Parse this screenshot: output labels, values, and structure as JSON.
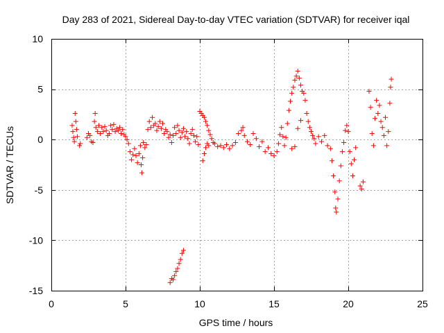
{
  "chart_data": {
    "type": "scatter",
    "title": "Day 283 of 2021, Sidereal Day-to-day VTEC variation (SDTVAR) for receiver iqal",
    "xlabel": "GPS time / hours",
    "ylabel": "SDTVAR / TECUs",
    "xlim": [
      0,
      25
    ],
    "ylim": [
      -15,
      10
    ],
    "xticks": [
      0,
      5,
      10,
      15,
      20,
      25
    ],
    "yticks": [
      -15,
      -10,
      -5,
      0,
      5,
      10
    ],
    "xtick_labels": [
      "0",
      "5",
      "10",
      "15",
      "20",
      "25"
    ],
    "ytick_labels": [
      "-15",
      "-10",
      "-5",
      "0",
      "5",
      "10"
    ],
    "grid": true,
    "marker": "+",
    "color": "#ff0000",
    "series": [
      {
        "name": "SDTVAR",
        "points": [
          [
            1.4,
            1.4
          ],
          [
            1.45,
            0.8
          ],
          [
            1.5,
            0.2
          ],
          [
            1.55,
            -0.2
          ],
          [
            1.6,
            2.6
          ],
          [
            1.65,
            1.8
          ],
          [
            1.7,
            1.0
          ],
          [
            1.75,
            0.3
          ],
          [
            1.9,
            -0.6
          ],
          [
            1.95,
            -0.4
          ],
          [
            2.4,
            0.2
          ],
          [
            2.5,
            0.6
          ],
          [
            2.6,
            0.4
          ],
          [
            2.7,
            -0.2
          ],
          [
            2.8,
            -0.3
          ],
          [
            2.9,
            1.8
          ],
          [
            2.95,
            2.6
          ],
          [
            3.0,
            1.2
          ],
          [
            3.1,
            0.8
          ],
          [
            3.2,
            1.4
          ],
          [
            3.3,
            0.6
          ],
          [
            3.4,
            1.2
          ],
          [
            3.5,
            0.8
          ],
          [
            3.6,
            1.3
          ],
          [
            3.7,
            0.9
          ],
          [
            3.8,
            0.4
          ],
          [
            3.9,
            0.6
          ],
          [
            4.0,
            1.4
          ],
          [
            4.1,
            1.0
          ],
          [
            4.2,
            1.5
          ],
          [
            4.3,
            0.8
          ],
          [
            4.4,
            1.1
          ],
          [
            4.5,
            0.9
          ],
          [
            4.6,
            1.2
          ],
          [
            4.7,
            0.6
          ],
          [
            4.8,
            1.0
          ],
          [
            4.9,
            0.5
          ],
          [
            5.0,
            0.3
          ],
          [
            5.1,
            0.0
          ],
          [
            5.2,
            -0.4
          ],
          [
            5.3,
            -1.2
          ],
          [
            5.4,
            -2.0
          ],
          [
            5.5,
            -1.5
          ],
          [
            5.6,
            -0.9
          ],
          [
            5.7,
            -1.6
          ],
          [
            5.8,
            -2.3
          ],
          [
            5.9,
            -1.4
          ],
          [
            6.0,
            -0.6
          ],
          [
            6.05,
            -2.5
          ],
          [
            6.1,
            -3.3
          ],
          [
            6.15,
            -1.8
          ],
          [
            6.2,
            -0.3
          ],
          [
            6.3,
            -0.8
          ],
          [
            6.4,
            -0.5
          ],
          [
            6.5,
            1.0
          ],
          [
            6.6,
            1.8
          ],
          [
            6.7,
            1.2
          ],
          [
            6.8,
            2.2
          ],
          [
            6.9,
            1.4
          ],
          [
            7.0,
            1.6
          ],
          [
            7.1,
            0.9
          ],
          [
            7.2,
            1.3
          ],
          [
            7.3,
            1.8
          ],
          [
            7.4,
            1.1
          ],
          [
            7.5,
            1.6
          ],
          [
            7.6,
            0.6
          ],
          [
            7.7,
            1.0
          ],
          [
            7.8,
            0.8
          ],
          [
            7.9,
            0.2
          ],
          [
            8.0,
            0.5
          ],
          [
            8.1,
            -0.3
          ],
          [
            8.2,
            0.4
          ],
          [
            8.3,
            1.2
          ],
          [
            8.4,
            0.6
          ],
          [
            8.5,
            1.4
          ],
          [
            8.6,
            0.9
          ],
          [
            8.7,
            0.2
          ],
          [
            8.8,
            0.7
          ],
          [
            8.9,
            1.1
          ],
          [
            9.0,
            0.3
          ],
          [
            9.1,
            0.8
          ],
          [
            9.2,
            0.1
          ],
          [
            9.3,
            -0.4
          ],
          [
            9.4,
            0.6
          ],
          [
            9.5,
            1.0
          ],
          [
            9.6,
            0.4
          ],
          [
            9.7,
            -0.2
          ],
          [
            9.8,
            0.3
          ],
          [
            9.9,
            -0.5
          ],
          [
            8.0,
            -14.2
          ],
          [
            8.1,
            -13.8
          ],
          [
            8.2,
            -13.9
          ],
          [
            8.3,
            -13.5
          ],
          [
            8.4,
            -13.1
          ],
          [
            8.5,
            -12.8
          ],
          [
            8.6,
            -12.3
          ],
          [
            8.7,
            -11.9
          ],
          [
            8.8,
            -11.3
          ],
          [
            8.9,
            -11.0
          ],
          [
            10.0,
            2.8
          ],
          [
            10.1,
            2.6
          ],
          [
            10.2,
            2.4
          ],
          [
            10.3,
            2.2
          ],
          [
            10.4,
            1.8
          ],
          [
            10.5,
            1.4
          ],
          [
            10.6,
            0.9
          ],
          [
            10.7,
            0.5
          ],
          [
            10.8,
            0.1
          ],
          [
            10.9,
            -0.3
          ],
          [
            10.2,
            -2.1
          ],
          [
            10.3,
            -1.4
          ],
          [
            10.4,
            -0.8
          ],
          [
            10.5,
            -0.4
          ],
          [
            10.6,
            -0.6
          ],
          [
            11.0,
            -0.4
          ],
          [
            11.2,
            -0.7
          ],
          [
            11.4,
            -0.6
          ],
          [
            11.6,
            -0.8
          ],
          [
            11.8,
            -0.5
          ],
          [
            12.0,
            -0.9
          ],
          [
            12.2,
            -0.6
          ],
          [
            12.4,
            -0.3
          ],
          [
            12.6,
            0.6
          ],
          [
            12.8,
            0.9
          ],
          [
            12.9,
            1.2
          ],
          [
            13.0,
            0.4
          ],
          [
            13.2,
            -0.2
          ],
          [
            13.4,
            -0.5
          ],
          [
            13.6,
            0.6
          ],
          [
            13.8,
            0.1
          ],
          [
            14.0,
            -0.7
          ],
          [
            14.2,
            -0.2
          ],
          [
            14.4,
            -1.2
          ],
          [
            14.6,
            -0.8
          ],
          [
            14.8,
            -1.4
          ],
          [
            15.0,
            -1.6
          ],
          [
            15.2,
            -1.2
          ],
          [
            15.3,
            -0.4
          ],
          [
            15.4,
            0.5
          ],
          [
            15.5,
            1.2
          ],
          [
            15.6,
            0.3
          ],
          [
            15.7,
            -0.6
          ],
          [
            15.8,
            0.2
          ],
          [
            15.9,
            1.6
          ],
          [
            16.0,
            2.9
          ],
          [
            16.1,
            3.8
          ],
          [
            16.2,
            4.6
          ],
          [
            16.3,
            5.2
          ],
          [
            16.4,
            5.9
          ],
          [
            16.5,
            6.3
          ],
          [
            16.6,
            6.8
          ],
          [
            16.7,
            6.1
          ],
          [
            16.8,
            5.4
          ],
          [
            16.9,
            4.8
          ],
          [
            17.0,
            4.6
          ],
          [
            17.1,
            3.9
          ],
          [
            17.2,
            2.6
          ],
          [
            17.3,
            1.8
          ],
          [
            17.4,
            1.2
          ],
          [
            17.5,
            0.8
          ],
          [
            17.6,
            0.4
          ],
          [
            17.7,
            0.1
          ],
          [
            17.8,
            -0.4
          ],
          [
            16.2,
            -0.9
          ],
          [
            16.4,
            -0.7
          ],
          [
            16.6,
            1.1
          ],
          [
            16.8,
            1.9
          ],
          [
            18.0,
            0.3
          ],
          [
            18.2,
            -0.2
          ],
          [
            18.4,
            0.4
          ],
          [
            18.6,
            -0.6
          ],
          [
            18.8,
            -0.9
          ],
          [
            18.9,
            -2.1
          ],
          [
            19.0,
            -3.6
          ],
          [
            19.1,
            -5.2
          ],
          [
            19.15,
            -6.8
          ],
          [
            19.2,
            -7.2
          ],
          [
            19.3,
            -5.9
          ],
          [
            19.4,
            -4.1
          ],
          [
            19.5,
            -2.6
          ],
          [
            19.6,
            -1.2
          ],
          [
            19.7,
            -0.3
          ],
          [
            19.8,
            0.9
          ],
          [
            19.9,
            1.4
          ],
          [
            20.0,
            0.8
          ],
          [
            20.1,
            -1.2
          ],
          [
            20.2,
            -2.4
          ],
          [
            20.3,
            -3.6
          ],
          [
            20.4,
            -2.0
          ],
          [
            20.5,
            -0.8
          ],
          [
            20.8,
            -4.6
          ],
          [
            20.9,
            -4.9
          ],
          [
            21.0,
            -4.2
          ],
          [
            21.4,
            4.8
          ],
          [
            21.5,
            3.2
          ],
          [
            21.6,
            0.6
          ],
          [
            21.7,
            -0.6
          ],
          [
            21.8,
            2.1
          ],
          [
            21.9,
            3.9
          ],
          [
            22.0,
            2.6
          ],
          [
            22.1,
            3.4
          ],
          [
            22.2,
            1.8
          ],
          [
            22.3,
            1.2
          ],
          [
            22.4,
            0.4
          ],
          [
            22.5,
            2.2
          ],
          [
            22.6,
            -0.6
          ],
          [
            22.7,
            0.8
          ],
          [
            22.8,
            3.6
          ],
          [
            22.85,
            5.2
          ],
          [
            22.9,
            6.0
          ]
        ]
      }
    ]
  }
}
